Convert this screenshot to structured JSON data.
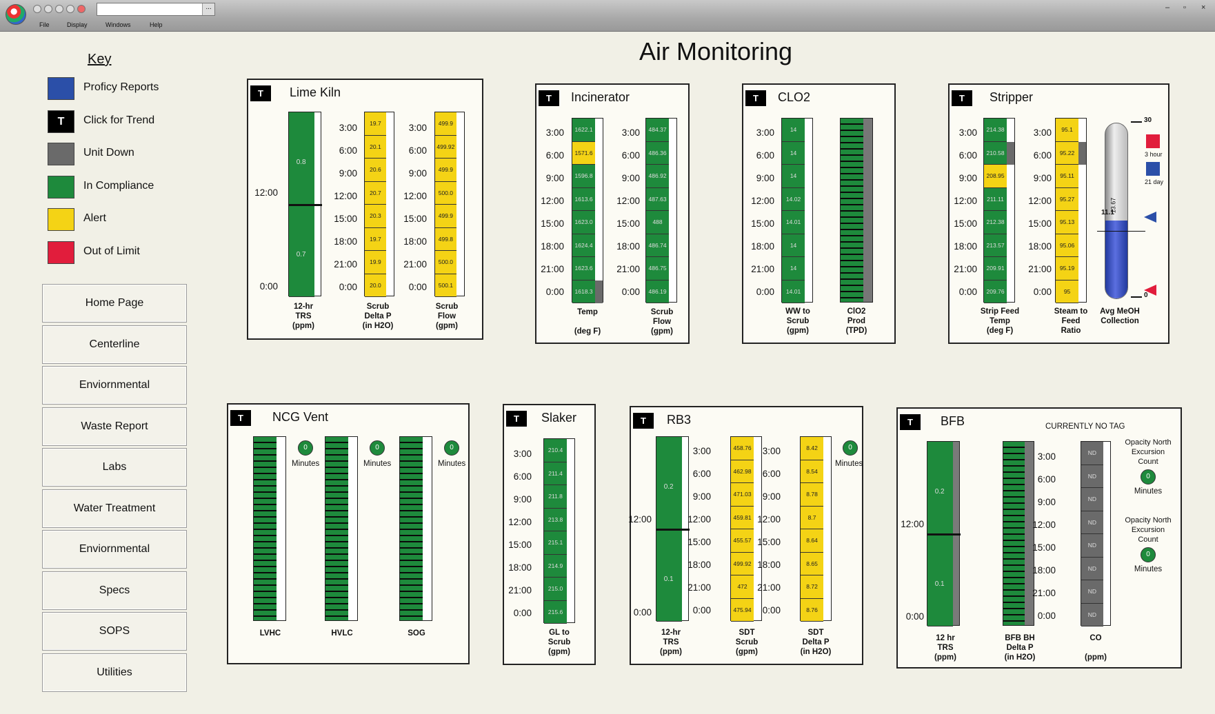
{
  "window": {
    "combo_arrow": "...",
    "minimize": "–",
    "maximize": "▫",
    "close": "×"
  },
  "menu": [
    "File",
    "Display",
    "Windows",
    "Help"
  ],
  "title": "Air Monitoring",
  "key": {
    "title": "Key",
    "items": [
      {
        "label": "Proficy Reports",
        "color": "#2b4fa8"
      },
      {
        "label": "Click for Trend",
        "color": "#000000",
        "glyph": "T"
      },
      {
        "label": "Unit Down",
        "color": "#6a6a6a"
      },
      {
        "label": "In Compliance",
        "color": "#1e8a3c"
      },
      {
        "label": "Alert",
        "color": "#f4d315"
      },
      {
        "label": "Out of Limit",
        "color": "#e11d3c"
      }
    ]
  },
  "nav": [
    "Home Page",
    "Centerline",
    "Enviornmental",
    "Waste Report",
    "Labs",
    "Water Treatment",
    "Enviornmental",
    "Specs",
    "SOPS",
    "Utilities"
  ],
  "colors": {
    "compliance": "#1e8a3c",
    "alert": "#f4d315",
    "down": "#6a6a6a",
    "out_of_limit": "#e11d3c",
    "proficy": "#2b4fa8"
  },
  "trend_button": "T",
  "times": [
    "3:00",
    "6:00",
    "9:00",
    "12:00",
    "15:00",
    "18:00",
    "21:00",
    "0:00"
  ],
  "lime_kiln": {
    "title": "Lime Kiln",
    "trs_ticks": [
      "12:00",
      "0:00"
    ],
    "trs_values": [
      "0.8",
      "0.7"
    ],
    "scrub_dp": [
      "19.7",
      "20.1",
      "20.6",
      "20.7",
      "20.3",
      "19.7",
      "19.9",
      "20.0"
    ],
    "scrub_flow": [
      "499.9",
      "499.92",
      "499.9",
      "500.0",
      "499.9",
      "499.8",
      "500.0",
      "500.1"
    ],
    "labels": [
      "12-hr\nTRS\n(ppm)",
      "Scrub\nDelta P\n(in H2O)",
      "Scrub\nFlow\n(gpm)"
    ]
  },
  "incinerator": {
    "title": "Incinerator",
    "temp": [
      "1622.1",
      "1571.6",
      "1596.8",
      "1613.6",
      "1623.0",
      "1624.4",
      "1623.6",
      "1618.3"
    ],
    "flow": [
      "484.37",
      "486.36",
      "486.92",
      "487.63",
      "488",
      "486.74",
      "486.75",
      "486.19"
    ],
    "labels": [
      "Temp\n\n(deg F)",
      "Scrub\nFlow\n(gpm)"
    ]
  },
  "clo2": {
    "title": "CLO2",
    "ww": [
      "14",
      "14",
      "14",
      "14.02",
      "14.01",
      "14",
      "14",
      "14.01"
    ],
    "labels": [
      "WW to\nScrub\n(gpm)",
      "ClO2\nProd\n(TPD)"
    ]
  },
  "stripper": {
    "title": "Stripper",
    "feed": [
      "214.38",
      "210.58",
      "208.95",
      "211.11",
      "212.38",
      "213.57",
      "209.91",
      "209.76"
    ],
    "steam": [
      "95.1",
      "95.22",
      "95.11",
      "95.27",
      "95.13",
      "95.06",
      "95.19",
      "95"
    ],
    "gauge_top": "30",
    "gauge_bottom": "0",
    "gauge_value": "13.67",
    "gauge_mark": "11.1",
    "legend": [
      "3 hour",
      "21 day"
    ],
    "labels": [
      "Strip Feed\nTemp\n(deg F)",
      "Steam to\nFeed\nRatio",
      "Avg MeOH\nCollection"
    ]
  },
  "ncg_vent": {
    "title": "NCG Vent",
    "minutes_value": "0",
    "minutes_label": "Minutes",
    "labels": [
      "LVHC",
      "HVLC",
      "SOG"
    ]
  },
  "slaker": {
    "title": "Slaker",
    "gl": [
      "210.4",
      "211.4",
      "211.8",
      "213.8",
      "215.1",
      "214.9",
      "215.0",
      "215.6"
    ],
    "labels": [
      "GL to\nScrub\n(gpm)"
    ]
  },
  "rb3": {
    "title": "RB3",
    "trs_ticks": [
      "12:00",
      "0:00"
    ],
    "trs_values": [
      "0.2",
      "0.1"
    ],
    "sdt_scrub": [
      "458.76",
      "462.98",
      "471.03",
      "459.81",
      "455.57",
      "499.92",
      "472",
      "475.94"
    ],
    "sdt_dp": [
      "8.42",
      "8.54",
      "8.78",
      "8.7",
      "8.64",
      "8.65",
      "8.72",
      "8.76"
    ],
    "minutes_value": "0",
    "minutes_label": "Minutes",
    "labels": [
      "12-hr\nTRS\n(ppm)",
      "SDT\nScrub\n(gpm)",
      "SDT\nDelta P\n(in H2O)"
    ]
  },
  "bfb": {
    "title": "BFB",
    "status": "CURRENTLY NO TAG",
    "trs_ticks": [
      "12:00",
      "0:00"
    ],
    "trs_values": [
      "0.2",
      "0.1"
    ],
    "co": [
      "ND",
      "ND",
      "ND",
      "ND",
      "ND",
      "ND",
      "ND",
      "ND"
    ],
    "opacity": [
      {
        "label": "Opacity North\nExcursion\nCount",
        "value": "0",
        "unit": "Minutes"
      },
      {
        "label": "Opacity North\nExcursion\nCount",
        "value": "0",
        "unit": "Minutes"
      }
    ],
    "labels": [
      "12 hr\nTRS\n(ppm)",
      "BFB BH\nDelta P\n(in H2O)",
      "CO\n\n(ppm)"
    ]
  }
}
